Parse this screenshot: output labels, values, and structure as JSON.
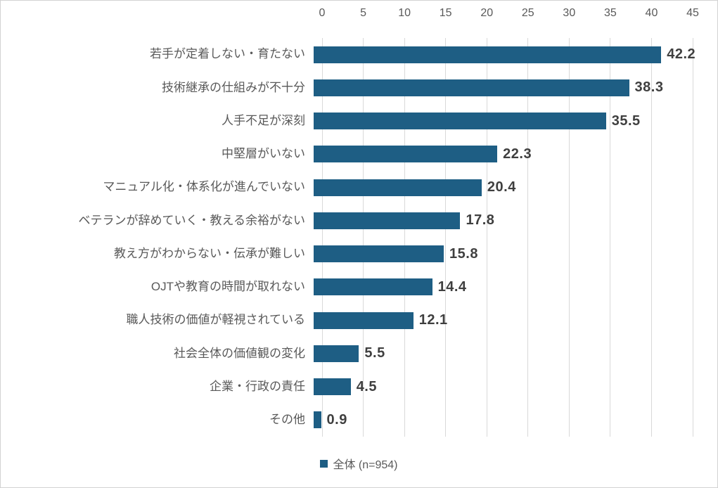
{
  "chart_data": {
    "type": "bar",
    "orientation": "horizontal",
    "title": "",
    "categories": [
      "若手が定着しない・育たない",
      "技術継承の仕組みが不十分",
      "人手不足が深刻",
      "中堅層がいない",
      "マニュアル化・体系化が進んでいない",
      "ベテランが辞めていく・教える余裕がない",
      "教え方がわからない・伝承が難しい",
      "OJTや教育の時間が取れない",
      "職人技術の価値が軽視されている",
      "社会全体の価値観の変化",
      "企業・行政の責任",
      "その他"
    ],
    "values": [
      42.2,
      38.3,
      35.5,
      22.3,
      20.4,
      17.8,
      15.8,
      14.4,
      12.1,
      5.5,
      4.5,
      0.9
    ],
    "series": [
      {
        "name": "全体 (n=954)",
        "values": [
          42.2,
          38.3,
          35.5,
          22.3,
          20.4,
          17.8,
          15.8,
          14.4,
          12.1,
          5.5,
          4.5,
          0.9
        ]
      }
    ],
    "xlabel": "",
    "ylabel": "",
    "xlim": [
      0,
      45
    ],
    "x_ticks": [
      0,
      5,
      10,
      15,
      20,
      25,
      30,
      35,
      40,
      45
    ],
    "axis_position": "top",
    "grid": "vertical",
    "legend_position": "bottom-center",
    "bar_color": "#1e5e84",
    "value_labels_shown": true
  },
  "legend": {
    "label": "全体 (n=954)"
  },
  "colors": {
    "bar": "#1e5e84",
    "gridline": "#d9d9d9",
    "axis_text": "#595959",
    "category_text": "#595959",
    "value_text": "#3f3f3f",
    "border": "#d2d2d2",
    "background": "#ffffff"
  }
}
